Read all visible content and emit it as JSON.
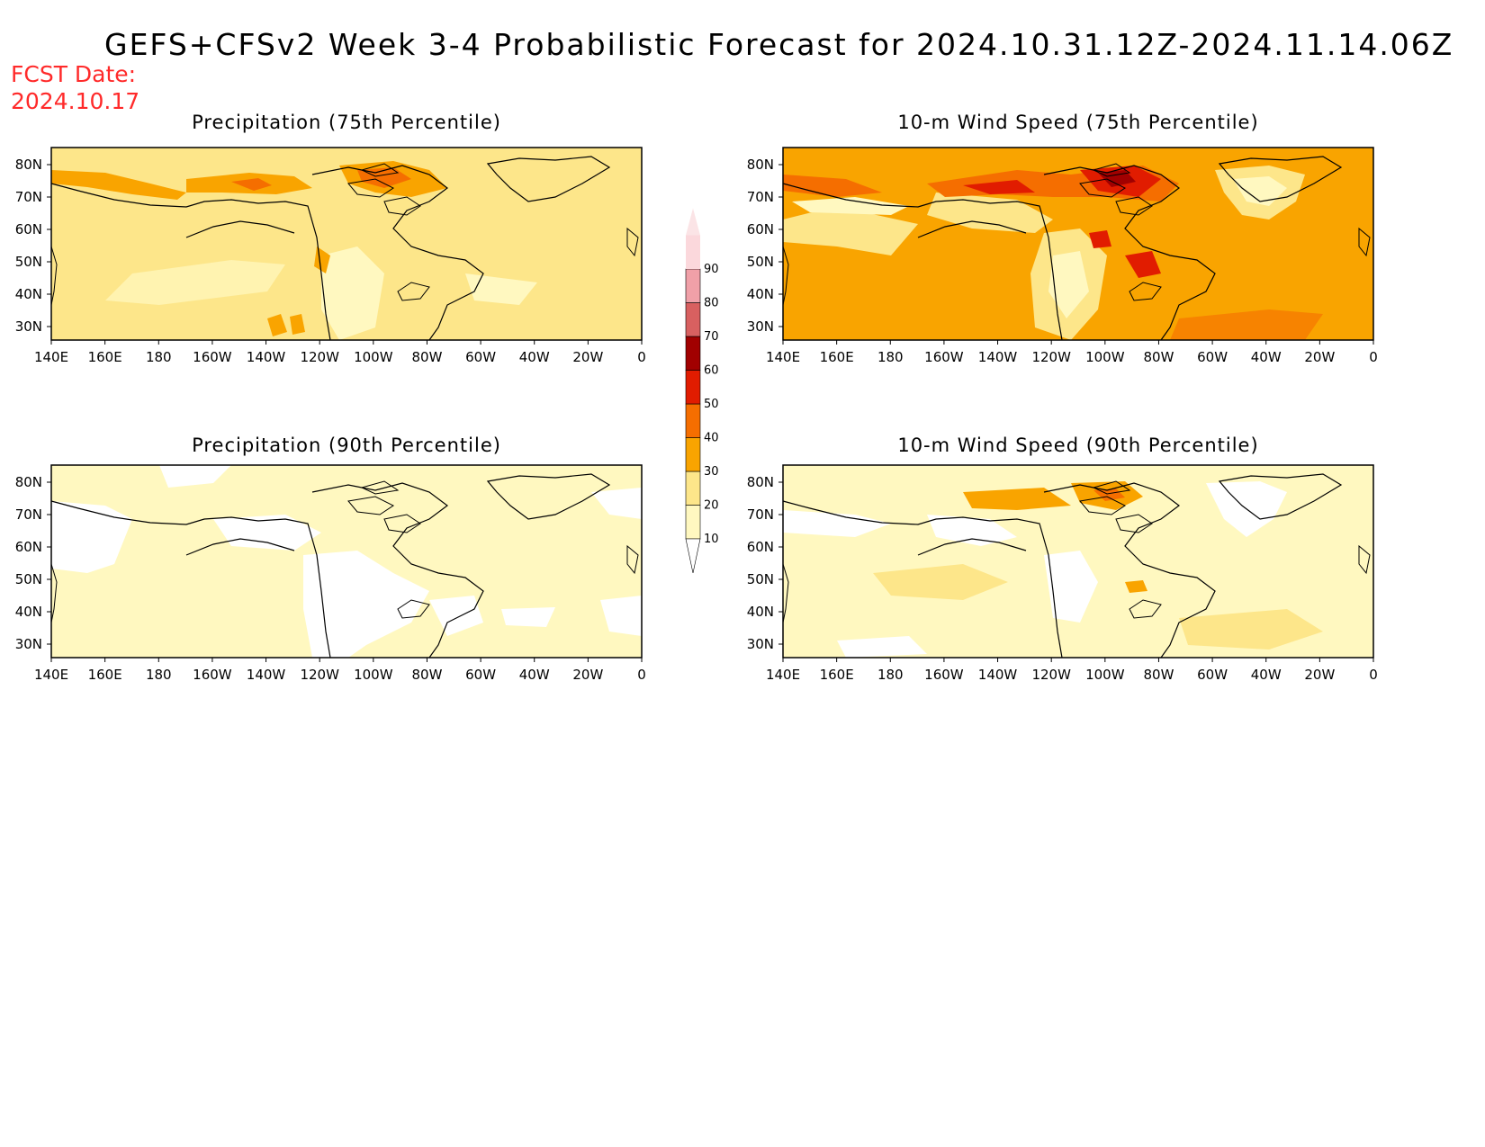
{
  "title": "GEFS+CFSv2 Week 3-4 Probabilistic Forecast for 2024.10.31.12Z-2024.11.14.06Z",
  "fcst_label": "FCST Date:",
  "fcst_date": "2024.10.17",
  "colors": {
    "fcst_text": "#ff2a2a",
    "scale": [
      "#ffffff",
      "#fff8c0",
      "#fde68a",
      "#f9a400",
      "#f56e00",
      "#e11c00",
      "#a10000",
      "#d86060",
      "#f0a0a8",
      "#fbd8dc"
    ]
  },
  "axes": {
    "lon_ticks": [
      "140E",
      "160E",
      "180",
      "160W",
      "140W",
      "120W",
      "100W",
      "80W",
      "60W",
      "40W",
      "20W",
      "0"
    ],
    "lat_ticks": [
      "80N",
      "70N",
      "60N",
      "50N",
      "40N",
      "30N"
    ]
  },
  "colorbar": {
    "levels": [
      "10",
      "20",
      "30",
      "40",
      "50",
      "60",
      "70",
      "80",
      "90"
    ]
  },
  "panels": [
    {
      "id": "precip75",
      "title": "Precipitation (75th Percentile)"
    },
    {
      "id": "wind75",
      "title": "10-m Wind Speed (75th Percentile)"
    },
    {
      "id": "precip90",
      "title": "Precipitation (90th Percentile)"
    },
    {
      "id": "wind90",
      "title": "10-m Wind Speed (90th Percentile)"
    }
  ]
}
